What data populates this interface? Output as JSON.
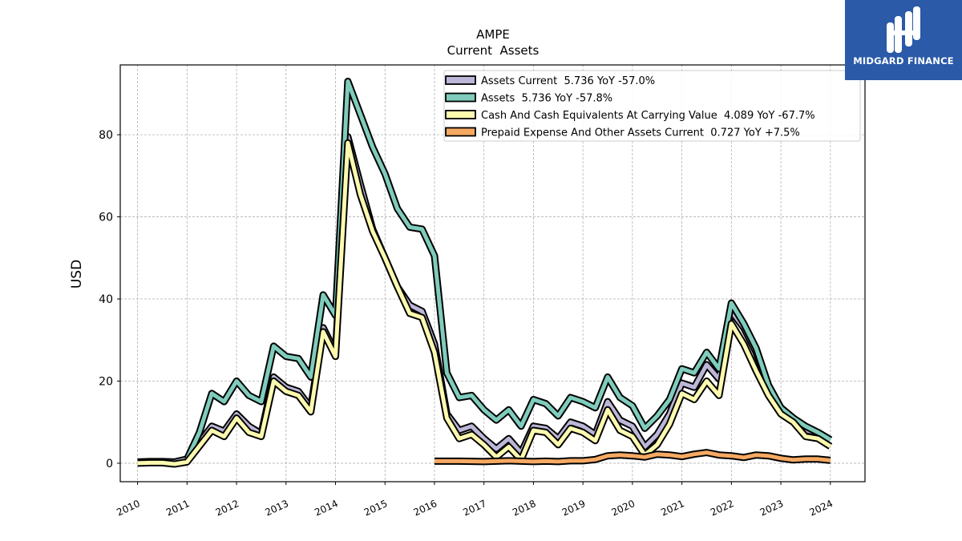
{
  "brand": {
    "name": "MIDGARD FINANCE",
    "bg_color": "#2a5aa8"
  },
  "chart_data": {
    "type": "line",
    "title": "AMPE",
    "subtitle": "Current  Assets",
    "ylabel": "USD",
    "xlabel": "",
    "xlim": [
      2009.65,
      2024.7
    ],
    "ylim": [
      -4.5,
      97
    ],
    "yticks": [
      0,
      20,
      40,
      60,
      80
    ],
    "xticks": [
      2010,
      2011,
      2012,
      2013,
      2014,
      2015,
      2016,
      2017,
      2018,
      2019,
      2020,
      2021,
      2022,
      2023,
      2024
    ],
    "grid": true,
    "legend_position": "top-right",
    "series": [
      {
        "name": "Assets Current  5.736 YoY -57.0%",
        "color": "#bcb6d8",
        "points": [
          [
            2010.0,
            0.3
          ],
          [
            2010.25,
            0.4
          ],
          [
            2010.5,
            0.4
          ],
          [
            2010.75,
            0.3
          ],
          [
            2011.0,
            1.0
          ],
          [
            2011.5,
            9.0
          ],
          [
            2011.75,
            7.8
          ],
          [
            2012.0,
            12.0
          ],
          [
            2012.25,
            9.0
          ],
          [
            2012.5,
            7.2
          ],
          [
            2012.75,
            21.0
          ],
          [
            2013.0,
            18.5
          ],
          [
            2013.25,
            17.5
          ],
          [
            2013.5,
            13.5
          ],
          [
            2013.75,
            33.0
          ],
          [
            2014.0,
            27.0
          ],
          [
            2014.25,
            79.5
          ],
          [
            2014.5,
            68.0
          ],
          [
            2014.75,
            57.0
          ],
          [
            2015.0,
            50.0
          ],
          [
            2015.25,
            43.0
          ],
          [
            2015.5,
            38.5
          ],
          [
            2015.75,
            37.0
          ],
          [
            2016.0,
            29.0
          ],
          [
            2016.25,
            12.0
          ],
          [
            2016.5,
            8.0
          ],
          [
            2016.75,
            9.0
          ],
          [
            2017.0,
            6.0
          ],
          [
            2017.25,
            3.5
          ],
          [
            2017.5,
            6.0
          ],
          [
            2017.75,
            2.5
          ],
          [
            2018.0,
            9.0
          ],
          [
            2018.25,
            8.5
          ],
          [
            2018.5,
            6.0
          ],
          [
            2018.75,
            10.0
          ],
          [
            2019.0,
            9.0
          ],
          [
            2019.25,
            7.0
          ],
          [
            2019.5,
            15.0
          ],
          [
            2019.75,
            10.5
          ],
          [
            2020.0,
            9.0
          ],
          [
            2020.25,
            4.0
          ],
          [
            2020.5,
            7.0
          ],
          [
            2020.75,
            12.0
          ],
          [
            2021.0,
            19.5
          ],
          [
            2021.25,
            18.5
          ],
          [
            2021.5,
            24.0
          ],
          [
            2021.75,
            20.5
          ],
          [
            2022.0,
            37.0
          ],
          [
            2022.25,
            33.0
          ],
          [
            2022.5,
            27.0
          ],
          [
            2022.75,
            18.5
          ],
          [
            2023.0,
            13.5
          ],
          [
            2023.25,
            11.0
          ],
          [
            2023.5,
            8.0
          ],
          [
            2023.75,
            7.5
          ],
          [
            2024.0,
            5.7
          ]
        ]
      },
      {
        "name": "Assets  5.736 YoY -57.8%",
        "color": "#7fccbc",
        "points": [
          [
            2011.0,
            1.0
          ],
          [
            2011.25,
            7.5
          ],
          [
            2011.5,
            17.0
          ],
          [
            2011.75,
            15.0
          ],
          [
            2012.0,
            20.0
          ],
          [
            2012.25,
            16.5
          ],
          [
            2012.5,
            15.0
          ],
          [
            2012.75,
            28.5
          ],
          [
            2013.0,
            26.0
          ],
          [
            2013.25,
            25.5
          ],
          [
            2013.5,
            21.0
          ],
          [
            2013.75,
            41.0
          ],
          [
            2014.0,
            36.0
          ],
          [
            2014.25,
            93.0
          ],
          [
            2014.5,
            85.0
          ],
          [
            2014.75,
            77.0
          ],
          [
            2015.0,
            70.5
          ],
          [
            2015.25,
            62.0
          ],
          [
            2015.5,
            57.5
          ],
          [
            2015.75,
            57.0
          ],
          [
            2016.0,
            50.5
          ],
          [
            2016.25,
            22.0
          ],
          [
            2016.5,
            16.0
          ],
          [
            2016.75,
            16.5
          ],
          [
            2017.0,
            13.0
          ],
          [
            2017.25,
            10.5
          ],
          [
            2017.5,
            13.0
          ],
          [
            2017.75,
            9.0
          ],
          [
            2018.0,
            15.5
          ],
          [
            2018.25,
            14.5
          ],
          [
            2018.5,
            11.5
          ],
          [
            2018.75,
            16.0
          ],
          [
            2019.0,
            15.0
          ],
          [
            2019.25,
            13.5
          ],
          [
            2019.5,
            21.0
          ],
          [
            2019.75,
            16.0
          ],
          [
            2020.0,
            14.0
          ],
          [
            2020.25,
            8.5
          ],
          [
            2020.5,
            11.5
          ],
          [
            2020.75,
            15.5
          ],
          [
            2021.0,
            23.0
          ],
          [
            2021.25,
            22.0
          ],
          [
            2021.5,
            27.0
          ],
          [
            2021.75,
            23.0
          ],
          [
            2022.0,
            39.0
          ],
          [
            2022.25,
            34.0
          ],
          [
            2022.5,
            28.0
          ],
          [
            2022.75,
            19.0
          ],
          [
            2023.0,
            13.5
          ],
          [
            2023.25,
            11.0
          ],
          [
            2023.5,
            9.0
          ],
          [
            2023.75,
            7.5
          ],
          [
            2024.0,
            5.7
          ]
        ]
      },
      {
        "name": "Cash And Cash Equivalents At Carrying Value  4.089 YoY -67.7%",
        "color": "#fdfab0",
        "points": [
          [
            2010.0,
            0.0
          ],
          [
            2010.25,
            0.1
          ],
          [
            2010.5,
            0.1
          ],
          [
            2010.75,
            -0.2
          ],
          [
            2011.0,
            0.3
          ],
          [
            2011.5,
            8.0
          ],
          [
            2011.75,
            6.5
          ],
          [
            2012.0,
            11.0
          ],
          [
            2012.25,
            7.5
          ],
          [
            2012.5,
            6.5
          ],
          [
            2012.75,
            20.0
          ],
          [
            2013.0,
            17.5
          ],
          [
            2013.25,
            16.5
          ],
          [
            2013.5,
            12.5
          ],
          [
            2013.75,
            32.0
          ],
          [
            2014.0,
            26.0
          ],
          [
            2014.25,
            78.0
          ],
          [
            2014.5,
            65.5
          ],
          [
            2014.75,
            56.5
          ],
          [
            2015.0,
            50.0
          ],
          [
            2015.25,
            43.0
          ],
          [
            2015.5,
            36.5
          ],
          [
            2015.75,
            35.5
          ],
          [
            2016.0,
            27.0
          ],
          [
            2016.25,
            11.0
          ],
          [
            2016.5,
            6.0
          ],
          [
            2016.75,
            7.0
          ],
          [
            2017.0,
            4.5
          ],
          [
            2017.25,
            1.5
          ],
          [
            2017.5,
            4.0
          ],
          [
            2017.75,
            0.8
          ],
          [
            2018.0,
            8.0
          ],
          [
            2018.25,
            7.5
          ],
          [
            2018.5,
            4.5
          ],
          [
            2018.75,
            8.5
          ],
          [
            2019.0,
            7.5
          ],
          [
            2019.25,
            5.5
          ],
          [
            2019.5,
            13.0
          ],
          [
            2019.75,
            8.0
          ],
          [
            2020.0,
            6.5
          ],
          [
            2020.25,
            2.0
          ],
          [
            2020.5,
            4.5
          ],
          [
            2020.75,
            9.5
          ],
          [
            2021.0,
            17.0
          ],
          [
            2021.25,
            15.5
          ],
          [
            2021.5,
            20.0
          ],
          [
            2021.75,
            16.5
          ],
          [
            2022.0,
            34.0
          ],
          [
            2022.25,
            29.0
          ],
          [
            2022.5,
            22.5
          ],
          [
            2022.75,
            16.5
          ],
          [
            2023.0,
            12.0
          ],
          [
            2023.25,
            10.0
          ],
          [
            2023.5,
            6.5
          ],
          [
            2023.75,
            6.0
          ],
          [
            2024.0,
            4.1
          ]
        ]
      },
      {
        "name": "Prepaid Expense And Other Assets Current  0.727 YoY +7.5%",
        "color": "#f6a963",
        "points": [
          [
            2016.0,
            0.5
          ],
          [
            2016.5,
            0.5
          ],
          [
            2017.0,
            0.4
          ],
          [
            2017.5,
            0.6
          ],
          [
            2018.0,
            0.4
          ],
          [
            2018.25,
            0.5
          ],
          [
            2018.5,
            0.4
          ],
          [
            2018.75,
            0.6
          ],
          [
            2019.0,
            0.6
          ],
          [
            2019.25,
            0.9
          ],
          [
            2019.5,
            1.8
          ],
          [
            2019.75,
            2.0
          ],
          [
            2020.0,
            1.8
          ],
          [
            2020.25,
            1.5
          ],
          [
            2020.5,
            2.2
          ],
          [
            2020.75,
            2.0
          ],
          [
            2021.0,
            1.6
          ],
          [
            2021.25,
            2.2
          ],
          [
            2021.5,
            2.6
          ],
          [
            2021.75,
            2.0
          ],
          [
            2022.0,
            1.8
          ],
          [
            2022.25,
            1.4
          ],
          [
            2022.5,
            2.0
          ],
          [
            2022.75,
            1.8
          ],
          [
            2023.0,
            1.2
          ],
          [
            2023.25,
            0.8
          ],
          [
            2023.5,
            1.0
          ],
          [
            2023.75,
            1.0
          ],
          [
            2024.0,
            0.7
          ]
        ]
      }
    ]
  }
}
